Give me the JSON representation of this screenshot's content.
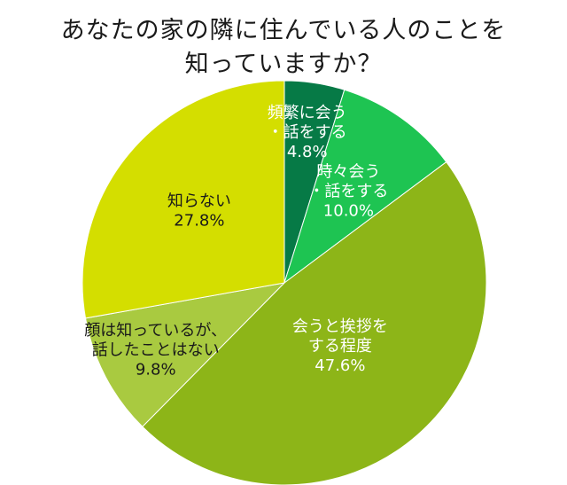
{
  "chart_data": {
    "type": "pie",
    "title": [
      "あなたの家の隣に住んでいる人のことを",
      "知っていますか？"
    ],
    "start_angle": 0,
    "direction": "clockwise",
    "slices": [
      {
        "label": [
          "頻繁に会う",
          "・話をする"
        ],
        "value": 4.8,
        "display": "4.8%",
        "color": "#067a46",
        "text_color": "#ffffff"
      },
      {
        "label": [
          "時々会う",
          "・話をする"
        ],
        "value": 10.0,
        "display": "10.0%",
        "color": "#1ec452",
        "text_color": "#ffffff"
      },
      {
        "label": [
          "会うと挨拶を",
          "する程度"
        ],
        "value": 47.6,
        "display": "47.6%",
        "color": "#8db518",
        "text_color": "#ffffff"
      },
      {
        "label": [
          "顔は知っているが、",
          "話したことはない"
        ],
        "value": 9.8,
        "display": "9.8%",
        "color": "#a9ca40",
        "text_color": "#1a1a1a"
      },
      {
        "label": [
          "知らない"
        ],
        "value": 27.8,
        "display": "27.8%",
        "color": "#d4de00",
        "text_color": "#1a1a1a"
      }
    ]
  }
}
